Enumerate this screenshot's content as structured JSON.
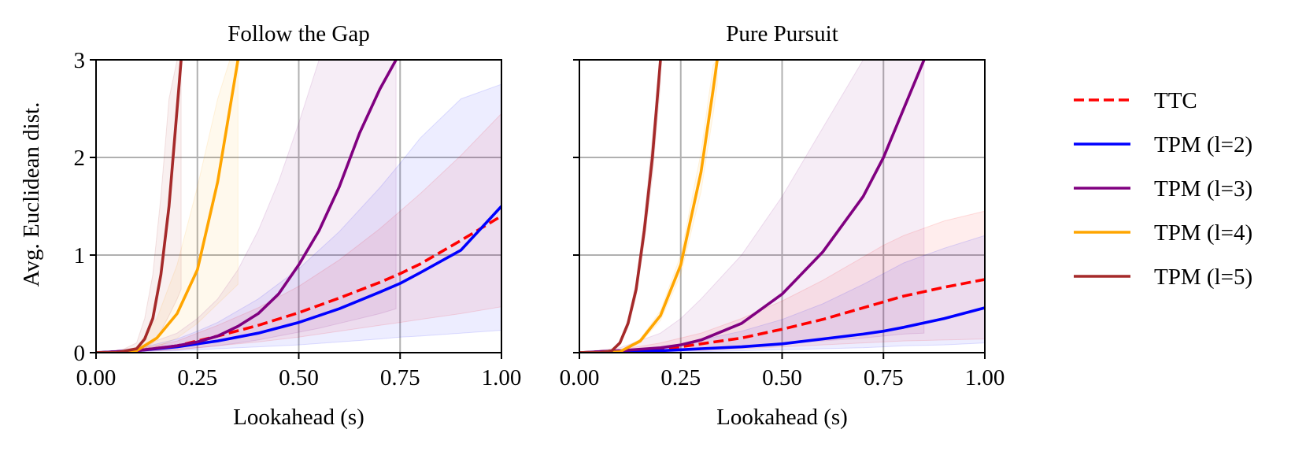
{
  "figure": {
    "ylabel": "Avg. Euclidean dist.",
    "legend_position": "right, outside plots"
  },
  "legend": [
    {
      "label": "TTC",
      "color": "#ff0000",
      "dashed": true
    },
    {
      "label": "TPM (l=2)",
      "color": "#0000ff",
      "dashed": false
    },
    {
      "label": "TPM (l=3)",
      "color": "#800080",
      "dashed": false
    },
    {
      "label": "TPM (l=4)",
      "color": "#ffa500",
      "dashed": false
    },
    {
      "label": "TPM (l=5)",
      "color": "#a52a2a",
      "dashed": false
    }
  ],
  "chart_data": [
    {
      "type": "line",
      "title": "Follow the Gap",
      "xlabel": "Lookahead (s)",
      "ylabel": "Avg. Euclidean dist.",
      "xlim": [
        0,
        1
      ],
      "ylim": [
        0,
        3
      ],
      "xticks": [
        "0.00",
        "0.25",
        "0.50",
        "0.75",
        "1.00"
      ],
      "yticks": [
        "0",
        "1",
        "2",
        "3"
      ],
      "grid": true,
      "series": [
        {
          "name": "TTC",
          "color": "#ff0000",
          "dashed": true,
          "x": [
            0,
            0.1,
            0.2,
            0.25,
            0.3,
            0.4,
            0.5,
            0.6,
            0.7,
            0.75,
            0.8,
            0.9,
            1.0
          ],
          "y": [
            0,
            0.02,
            0.07,
            0.12,
            0.17,
            0.28,
            0.41,
            0.56,
            0.72,
            0.81,
            0.91,
            1.15,
            1.4
          ],
          "band_lower": [
            0,
            0.01,
            0.03,
            0.05,
            0.07,
            0.11,
            0.16,
            0.22,
            0.28,
            0.31,
            0.34,
            0.4,
            0.47
          ],
          "band_upper": [
            0,
            0.03,
            0.12,
            0.2,
            0.28,
            0.46,
            0.68,
            0.95,
            1.27,
            1.45,
            1.63,
            2.02,
            2.45
          ]
        },
        {
          "name": "TPM (l=2)",
          "color": "#0000ff",
          "dashed": false,
          "x": [
            0,
            0.1,
            0.2,
            0.25,
            0.3,
            0.4,
            0.5,
            0.6,
            0.7,
            0.75,
            0.8,
            0.9,
            1.0
          ],
          "y": [
            0,
            0.02,
            0.06,
            0.09,
            0.12,
            0.2,
            0.31,
            0.45,
            0.62,
            0.71,
            0.82,
            1.05,
            1.5
          ],
          "band_lower": [
            0,
            0.01,
            0.02,
            0.03,
            0.04,
            0.06,
            0.08,
            0.11,
            0.14,
            0.16,
            0.17,
            0.2,
            0.23
          ],
          "band_upper": [
            0,
            0.04,
            0.14,
            0.22,
            0.31,
            0.55,
            0.86,
            1.24,
            1.69,
            1.94,
            2.2,
            2.6,
            2.75
          ]
        },
        {
          "name": "TPM (l=3)",
          "color": "#800080",
          "dashed": false,
          "x": [
            0,
            0.1,
            0.2,
            0.25,
            0.3,
            0.35,
            0.4,
            0.45,
            0.5,
            0.55,
            0.6,
            0.65,
            0.7,
            0.74
          ],
          "y": [
            0,
            0.02,
            0.07,
            0.11,
            0.17,
            0.27,
            0.4,
            0.6,
            0.9,
            1.25,
            1.7,
            2.25,
            2.7,
            3.0
          ],
          "band_lower": [
            0,
            0.01,
            0.03,
            0.05,
            0.07,
            0.1,
            0.13,
            0.17,
            0.21,
            0.25,
            0.3,
            0.35,
            0.4,
            0.45
          ],
          "band_upper": [
            0,
            0.05,
            0.2,
            0.35,
            0.55,
            0.85,
            1.25,
            1.75,
            2.35,
            3.0,
            3.0,
            3.0,
            3.0,
            3.0
          ]
        },
        {
          "name": "TPM (l=4)",
          "color": "#ffa500",
          "dashed": false,
          "x": [
            0,
            0.05,
            0.1,
            0.15,
            0.2,
            0.25,
            0.3,
            0.33,
            0.35
          ],
          "y": [
            0,
            0,
            0.02,
            0.15,
            0.4,
            0.85,
            1.75,
            2.5,
            3.0
          ],
          "band_lower": [
            0,
            0,
            0.01,
            0.06,
            0.15,
            0.3,
            0.5,
            0.62,
            0.7
          ],
          "band_upper": [
            0,
            0,
            0.05,
            0.35,
            0.9,
            1.7,
            2.6,
            3.0,
            3.0
          ]
        },
        {
          "name": "TPM (l=5)",
          "color": "#a52a2a",
          "dashed": false,
          "x": [
            0,
            0.05,
            0.1,
            0.12,
            0.14,
            0.16,
            0.18,
            0.2,
            0.21
          ],
          "y": [
            0,
            0,
            0.04,
            0.14,
            0.35,
            0.8,
            1.5,
            2.5,
            3.0
          ],
          "band_lower": [
            0,
            0,
            0.01,
            0.04,
            0.1,
            0.22,
            0.38,
            0.55,
            0.65
          ],
          "band_upper": [
            0,
            0,
            0.1,
            0.35,
            0.8,
            1.6,
            2.6,
            3.0,
            3.0
          ]
        }
      ]
    },
    {
      "type": "line",
      "title": "Pure Pursuit",
      "xlabel": "Lookahead (s)",
      "ylabel": "",
      "xlim": [
        0,
        1
      ],
      "ylim": [
        0,
        3
      ],
      "xticks": [
        "0.00",
        "0.25",
        "0.50",
        "0.75",
        "1.00"
      ],
      "yticks": [
        "0",
        "1",
        "2",
        "3"
      ],
      "grid": true,
      "series": [
        {
          "name": "TTC",
          "color": "#ff0000",
          "dashed": true,
          "x": [
            0,
            0.1,
            0.2,
            0.25,
            0.3,
            0.4,
            0.5,
            0.6,
            0.7,
            0.75,
            0.8,
            0.9,
            1.0
          ],
          "y": [
            0,
            0.02,
            0.04,
            0.06,
            0.09,
            0.15,
            0.24,
            0.34,
            0.46,
            0.52,
            0.58,
            0.67,
            0.75
          ],
          "band_lower": [
            0,
            0.01,
            0.01,
            0.02,
            0.02,
            0.04,
            0.06,
            0.08,
            0.1,
            0.11,
            0.12,
            0.13,
            0.14
          ],
          "band_upper": [
            0,
            0.03,
            0.1,
            0.15,
            0.2,
            0.35,
            0.53,
            0.74,
            0.98,
            1.1,
            1.2,
            1.35,
            1.45
          ]
        },
        {
          "name": "TPM (l=2)",
          "color": "#0000ff",
          "dashed": false,
          "x": [
            0,
            0.1,
            0.2,
            0.25,
            0.3,
            0.4,
            0.5,
            0.6,
            0.7,
            0.75,
            0.8,
            0.9,
            1.0
          ],
          "y": [
            0,
            0.01,
            0.02,
            0.03,
            0.04,
            0.06,
            0.09,
            0.14,
            0.19,
            0.22,
            0.26,
            0.35,
            0.46
          ],
          "band_lower": [
            0,
            0,
            0.01,
            0.01,
            0.01,
            0.02,
            0.03,
            0.04,
            0.05,
            0.06,
            0.07,
            0.08,
            0.1
          ],
          "band_upper": [
            0,
            0.02,
            0.06,
            0.09,
            0.13,
            0.22,
            0.34,
            0.5,
            0.7,
            0.81,
            0.92,
            1.07,
            1.2
          ]
        },
        {
          "name": "TPM (l=3)",
          "color": "#800080",
          "dashed": false,
          "x": [
            0,
            0.1,
            0.2,
            0.25,
            0.3,
            0.4,
            0.5,
            0.6,
            0.7,
            0.75,
            0.8,
            0.85
          ],
          "y": [
            0,
            0.02,
            0.05,
            0.08,
            0.13,
            0.3,
            0.6,
            1.03,
            1.6,
            2.0,
            2.5,
            3.0
          ],
          "band_lower": [
            0,
            0.01,
            0.02,
            0.03,
            0.04,
            0.06,
            0.09,
            0.12,
            0.15,
            0.17,
            0.19,
            0.2
          ],
          "band_upper": [
            0,
            0.05,
            0.2,
            0.35,
            0.55,
            1.0,
            1.6,
            2.3,
            3.0,
            3.0,
            3.0,
            3.0
          ]
        },
        {
          "name": "TPM (l=4)",
          "color": "#ffa500",
          "dashed": false,
          "x": [
            0,
            0.05,
            0.1,
            0.15,
            0.2,
            0.25,
            0.3,
            0.33,
            0.34
          ],
          "y": [
            0,
            0,
            0.01,
            0.12,
            0.38,
            0.9,
            1.85,
            2.7,
            3.0
          ],
          "band_lower": [
            0,
            0,
            0.01,
            0.1,
            0.33,
            0.8,
            1.65,
            2.45,
            2.75
          ],
          "band_upper": [
            0,
            0,
            0.02,
            0.14,
            0.43,
            1.0,
            2.05,
            2.95,
            3.0
          ]
        },
        {
          "name": "TPM (l=5)",
          "color": "#a52a2a",
          "dashed": false,
          "x": [
            0,
            0.05,
            0.08,
            0.1,
            0.12,
            0.14,
            0.16,
            0.18,
            0.2
          ],
          "y": [
            0,
            0,
            0.02,
            0.1,
            0.3,
            0.65,
            1.25,
            2.0,
            3.0
          ],
          "band_lower": [
            0,
            0,
            0.01,
            0.08,
            0.26,
            0.58,
            1.13,
            1.8,
            2.75
          ],
          "band_upper": [
            0,
            0,
            0.03,
            0.12,
            0.34,
            0.72,
            1.38,
            2.2,
            3.0
          ]
        }
      ]
    }
  ]
}
